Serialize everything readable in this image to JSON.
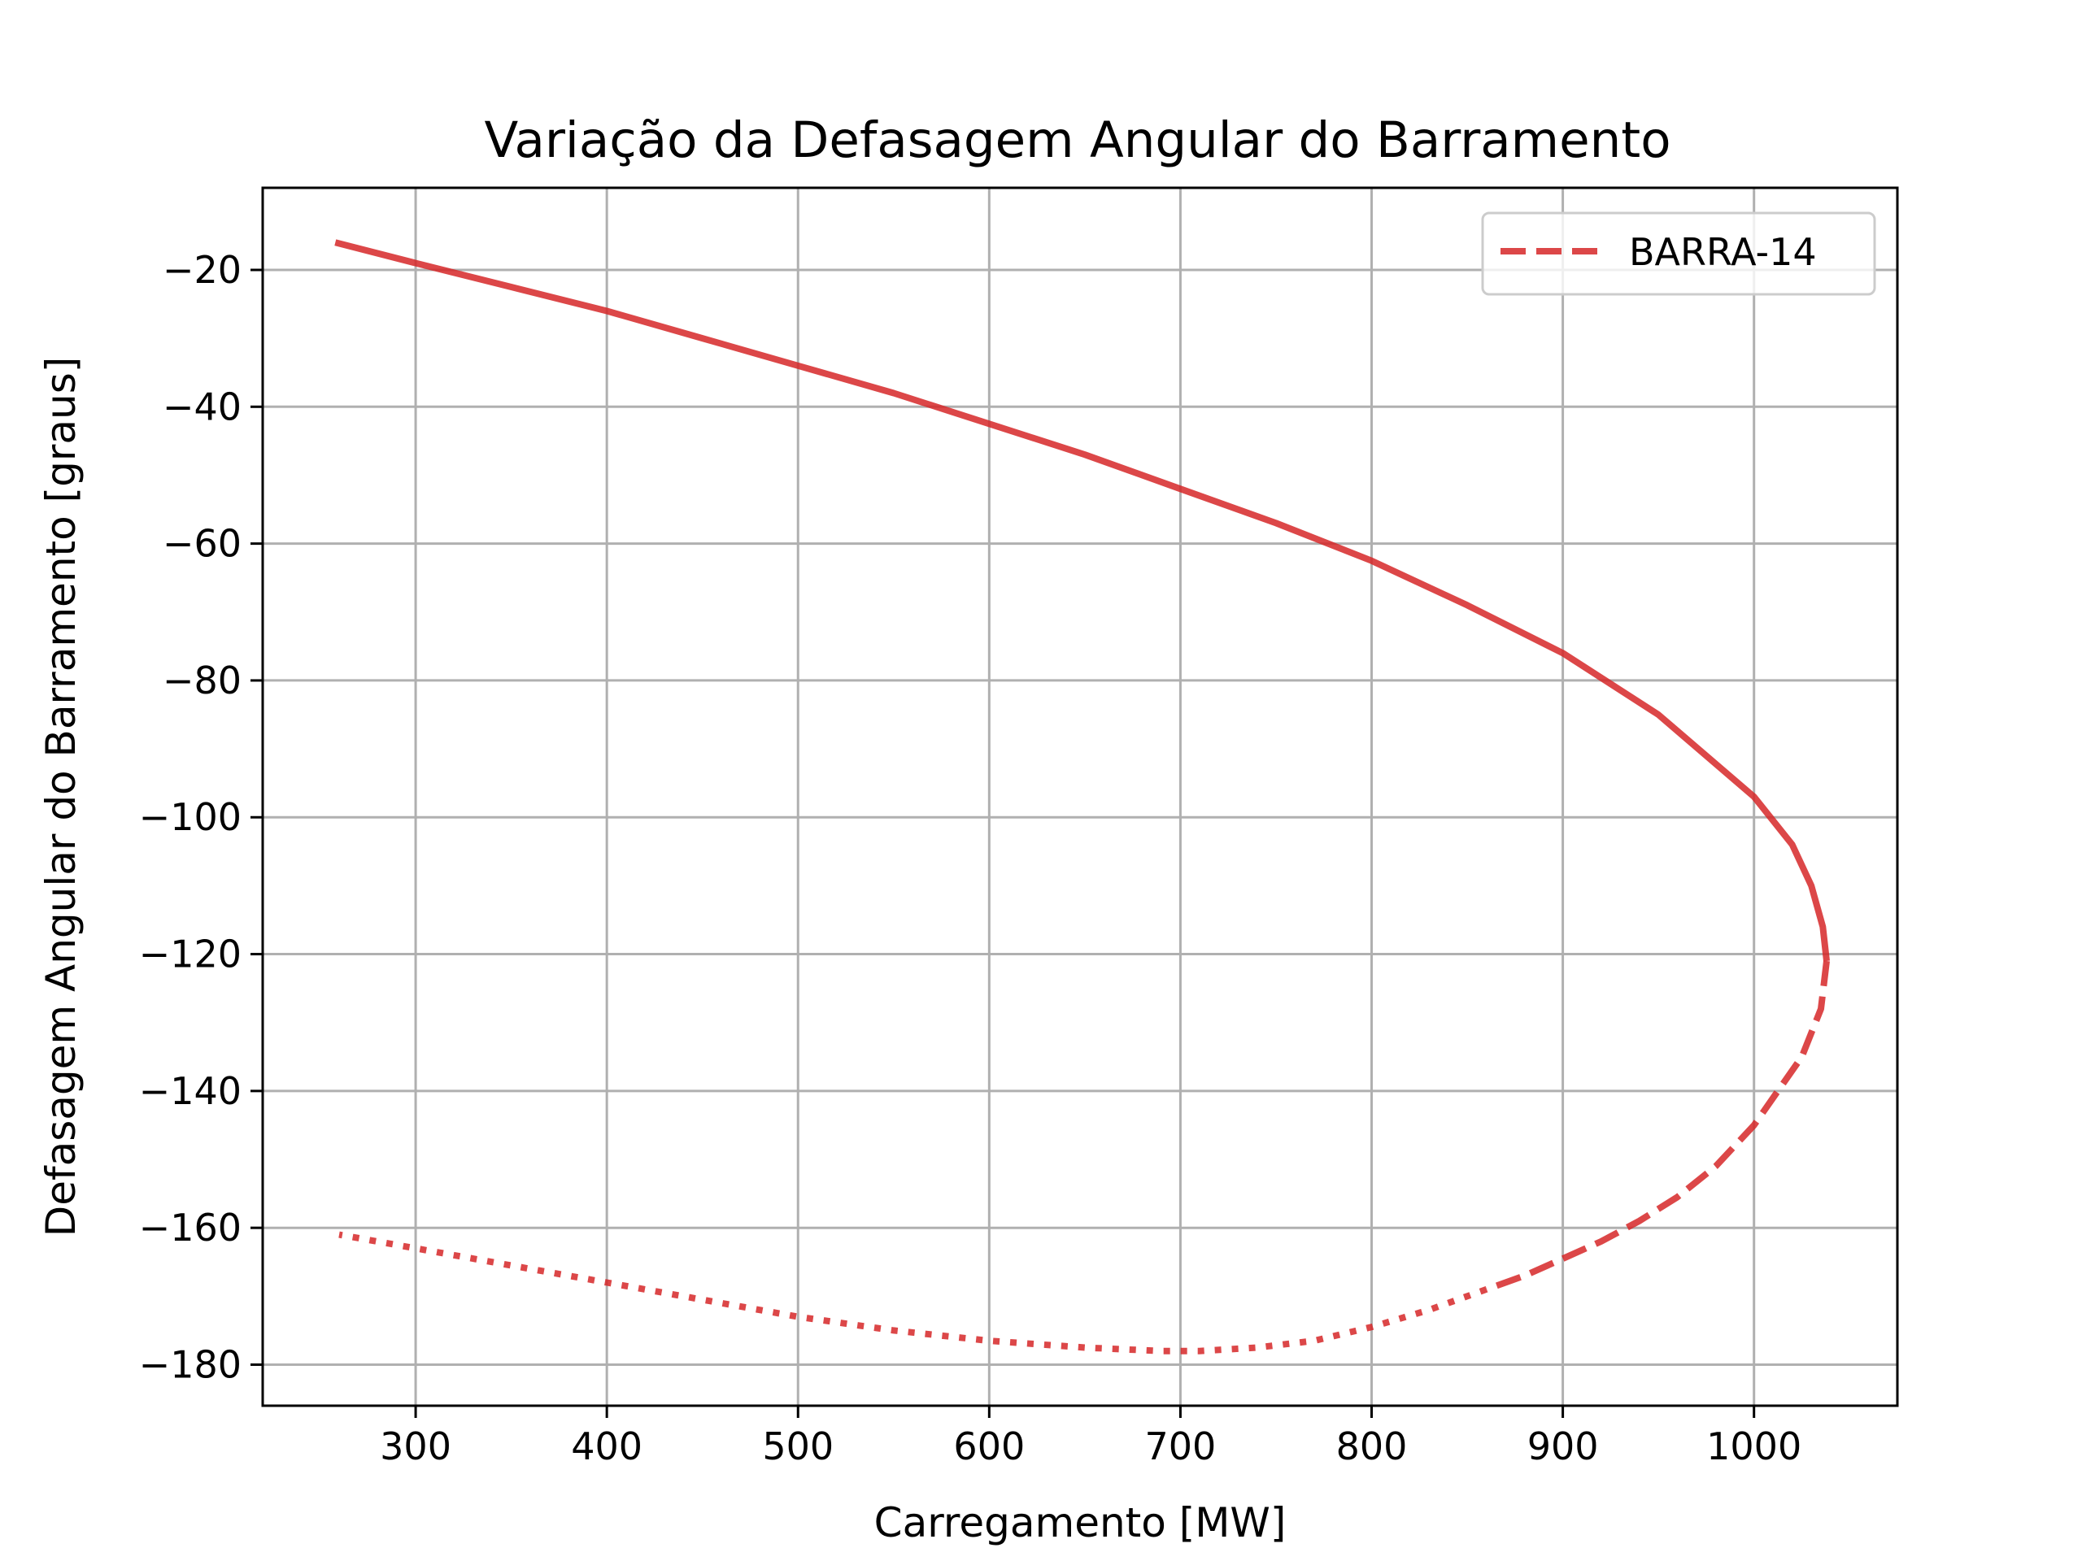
{
  "chart_data": {
    "type": "line",
    "title": "Variação da Defasagem Angular do Barramento",
    "xlabel": "Carregamento [MW]",
    "ylabel": "Defasagem Angular do Barramento [graus]",
    "xlim": [
      220,
      1075
    ],
    "ylim": [
      -186,
      -8
    ],
    "xticks": [
      300,
      400,
      500,
      600,
      700,
      800,
      900,
      1000
    ],
    "yticks": [
      -20,
      -40,
      -60,
      -80,
      -100,
      -120,
      -140,
      -160,
      -180
    ],
    "xtick_labels": [
      "300",
      "400",
      "500",
      "600",
      "700",
      "800",
      "900",
      "1000"
    ],
    "ytick_labels": [
      "−20",
      "−40",
      "−60",
      "−80",
      "−100",
      "−120",
      "−140",
      "−160",
      "−180"
    ],
    "grid": true,
    "legend_position": "top-right",
    "legend": [
      {
        "label": "BARRA-14",
        "style": "dashed",
        "color": "#d62728"
      }
    ],
    "series": [
      {
        "name": "BARRA-14",
        "segment": "upper",
        "style": "solid",
        "color": "#d62728",
        "x": [
          258,
          300,
          350,
          400,
          450,
          500,
          550,
          600,
          650,
          700,
          750,
          800,
          850,
          900,
          950,
          1000,
          1020,
          1030,
          1036,
          1038
        ],
        "y": [
          -16,
          -19,
          -22.5,
          -26,
          -30,
          -34,
          -38,
          -42.5,
          -47,
          -52,
          -57,
          -62.5,
          -69,
          -76,
          -85,
          -97,
          -104,
          -110,
          -116,
          -121
        ]
      },
      {
        "name": "",
        "segment": "middle",
        "style": "dashed",
        "color": "#d62728",
        "x": [
          1038,
          1035,
          1025,
          1010,
          1000,
          980,
          960,
          940,
          920,
          900,
          880,
          860
        ],
        "y": [
          -121,
          -128,
          -135,
          -141,
          -145,
          -151,
          -155.5,
          -159,
          -162,
          -164.5,
          -167,
          -169
        ]
      },
      {
        "name": "",
        "segment": "lower",
        "style": "dotted",
        "color": "#d62728",
        "x": [
          860,
          830,
          800,
          770,
          740,
          710,
          690,
          650,
          600,
          550,
          500,
          450,
          400,
          350,
          300,
          260
        ],
        "y": [
          -169,
          -172,
          -174.5,
          -176.5,
          -177.5,
          -178,
          -178,
          -177.5,
          -176.5,
          -175,
          -173,
          -170.5,
          -168,
          -165.5,
          -163,
          -161
        ]
      }
    ]
  }
}
